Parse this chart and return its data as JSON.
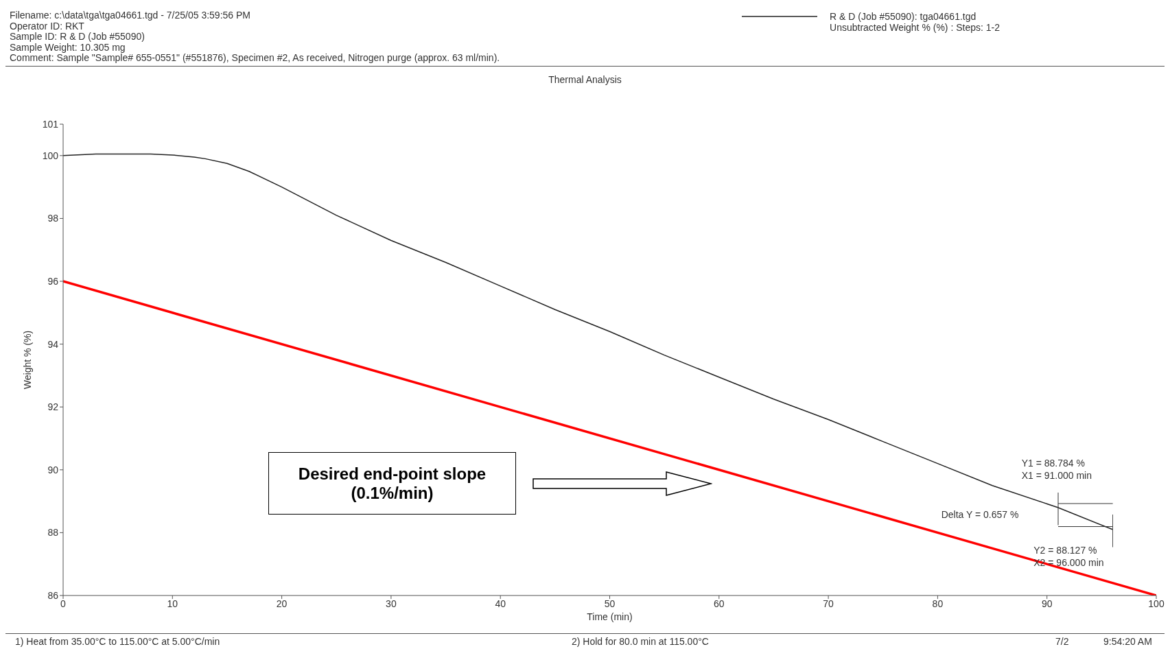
{
  "chart_data": {
    "type": "line",
    "title": "Thermal Analysis",
    "xlabel": "Time (min)",
    "ylabel": "Weight % (%)",
    "xlim": [
      0,
      100
    ],
    "xticks": [
      0,
      10,
      20,
      30,
      40,
      50,
      60,
      70,
      80,
      90,
      100
    ],
    "ylim": [
      86,
      101
    ],
    "yticks": [
      86,
      88,
      90,
      92,
      94,
      96,
      98,
      100,
      101
    ],
    "grid": false,
    "legend": "top right",
    "marker": "none",
    "line_style": "solid",
    "series": [
      {
        "name": "R & D (Job #55090): tga04661.tgd",
        "color": "#222222",
        "x": [
          0,
          3,
          5,
          8,
          10,
          12,
          13,
          15,
          17,
          20,
          25,
          30,
          35,
          40,
          45,
          50,
          55,
          60,
          65,
          70,
          75,
          80,
          85,
          91,
          96
        ],
        "values": [
          100,
          100.05,
          100.05,
          100.05,
          100.02,
          99.95,
          99.9,
          99.75,
          99.5,
          99.0,
          98.1,
          97.3,
          96.6,
          95.85,
          95.1,
          94.4,
          93.65,
          92.95,
          92.25,
          91.6,
          90.9,
          90.2,
          89.5,
          88.8,
          88.1
        ]
      },
      {
        "color": "#ff0000",
        "x": [
          0,
          100
        ],
        "values": [
          96,
          86
        ]
      }
    ],
    "annotations": [
      "Filename:  c:\\data\\tga\\tga04661.tgd - 7/25/05 3:59:56 PM",
      "Operator ID:  RKT",
      "Sample ID:  R & D (Job #55090)",
      "Sample Weight:  10.305 mg",
      "Comment:  Sample \"Sample# 655-0551\" (#551876), Specimen #2, As received, Nitrogen purge (approx. 63 ml/min).",
      "Unsubtracted Weight % (%) : Steps: 1-2",
      "Desired end-point slope (0.1%/min)",
      "Y1 = 88.784 %",
      "X1 = 91.000 min",
      "Delta Y = 0.657 %",
      "Y2 = 88.127 %",
      "X2 = 96.000 min",
      "1)  Heat from 35.00°C to 115.00°C at 5.00°C/min",
      "2)  Hold for 80.0 min at 115.00°C",
      "7/2",
      "9:54:20 AM"
    ]
  }
}
